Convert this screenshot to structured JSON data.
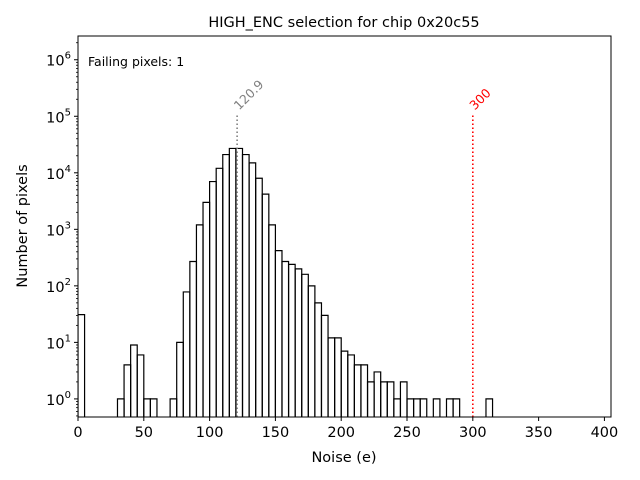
{
  "chart_data": {
    "type": "histogram",
    "title": "HIGH_ENC selection for chip 0x20c55",
    "xlabel": "Noise (e)",
    "ylabel": "Number of pixels",
    "xlim": [
      0,
      405
    ],
    "ylim_log10": [
      -0.32,
      6.42
    ],
    "x_ticks": [
      0,
      50,
      100,
      150,
      200,
      250,
      300,
      350,
      400
    ],
    "y_ticks": [
      {
        "exp": 0,
        "base": "10",
        "sup": "0"
      },
      {
        "exp": 1,
        "base": "10",
        "sup": "1"
      },
      {
        "exp": 2,
        "base": "10",
        "sup": "2"
      },
      {
        "exp": 3,
        "base": "10",
        "sup": "3"
      },
      {
        "exp": 4,
        "base": "10",
        "sup": "4"
      },
      {
        "exp": 5,
        "base": "10",
        "sup": "5"
      },
      {
        "exp": 6,
        "base": "10",
        "sup": "6"
      }
    ],
    "bin_width": 5,
    "bins": [
      {
        "x": 0,
        "y": 31
      },
      {
        "x": 5,
        "y": 0
      },
      {
        "x": 10,
        "y": 0
      },
      {
        "x": 15,
        "y": 0
      },
      {
        "x": 20,
        "y": 0
      },
      {
        "x": 25,
        "y": 0
      },
      {
        "x": 30,
        "y": 1
      },
      {
        "x": 35,
        "y": 4
      },
      {
        "x": 40,
        "y": 9
      },
      {
        "x": 45,
        "y": 6
      },
      {
        "x": 50,
        "y": 1
      },
      {
        "x": 55,
        "y": 1
      },
      {
        "x": 60,
        "y": 0
      },
      {
        "x": 65,
        "y": 0
      },
      {
        "x": 70,
        "y": 1
      },
      {
        "x": 75,
        "y": 10
      },
      {
        "x": 80,
        "y": 78
      },
      {
        "x": 85,
        "y": 270
      },
      {
        "x": 90,
        "y": 1200
      },
      {
        "x": 95,
        "y": 3000
      },
      {
        "x": 100,
        "y": 7000
      },
      {
        "x": 105,
        "y": 12000
      },
      {
        "x": 110,
        "y": 21000
      },
      {
        "x": 115,
        "y": 27000
      },
      {
        "x": 120,
        "y": 27000
      },
      {
        "x": 125,
        "y": 21000
      },
      {
        "x": 130,
        "y": 15000
      },
      {
        "x": 135,
        "y": 8000
      },
      {
        "x": 140,
        "y": 4200
      },
      {
        "x": 145,
        "y": 1200
      },
      {
        "x": 150,
        "y": 420
      },
      {
        "x": 155,
        "y": 270
      },
      {
        "x": 160,
        "y": 240
      },
      {
        "x": 165,
        "y": 200
      },
      {
        "x": 170,
        "y": 160
      },
      {
        "x": 175,
        "y": 100
      },
      {
        "x": 180,
        "y": 50
      },
      {
        "x": 185,
        "y": 30
      },
      {
        "x": 190,
        "y": 12
      },
      {
        "x": 195,
        "y": 12
      },
      {
        "x": 200,
        "y": 7
      },
      {
        "x": 205,
        "y": 6
      },
      {
        "x": 210,
        "y": 4
      },
      {
        "x": 215,
        "y": 4
      },
      {
        "x": 220,
        "y": 2
      },
      {
        "x": 225,
        "y": 3
      },
      {
        "x": 230,
        "y": 2
      },
      {
        "x": 235,
        "y": 2
      },
      {
        "x": 240,
        "y": 1
      },
      {
        "x": 245,
        "y": 2
      },
      {
        "x": 250,
        "y": 1
      },
      {
        "x": 255,
        "y": 1
      },
      {
        "x": 260,
        "y": 1
      },
      {
        "x": 265,
        "y": 0
      },
      {
        "x": 270,
        "y": 1
      },
      {
        "x": 275,
        "y": 0
      },
      {
        "x": 280,
        "y": 1
      },
      {
        "x": 285,
        "y": 1
      },
      {
        "x": 290,
        "y": 0
      },
      {
        "x": 295,
        "y": 0
      },
      {
        "x": 300,
        "y": 0
      },
      {
        "x": 305,
        "y": 0
      },
      {
        "x": 310,
        "y": 1
      }
    ],
    "markers": [
      {
        "name": "median",
        "x": 120.9,
        "label": "120.9",
        "color": "#808080"
      },
      {
        "name": "threshold",
        "x": 300,
        "label": "300",
        "color": "#ff0000"
      }
    ],
    "annotation": {
      "text": "Failing pixels: 1",
      "color": "#ff0000"
    }
  }
}
